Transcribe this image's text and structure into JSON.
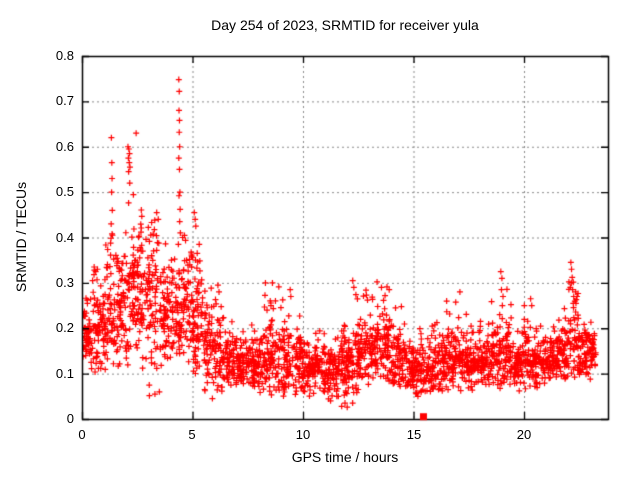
{
  "chart_data": {
    "type": "scatter",
    "title": "Day 254 of 2023, SRMTID for receiver yula",
    "xlabel": "GPS time / hours",
    "ylabel": "SRMTID / TECUs",
    "xlim": [
      0,
      23.8
    ],
    "ylim": [
      0,
      0.8
    ],
    "xticks": [
      "0",
      "5",
      "10",
      "15",
      "20"
    ],
    "yticks": [
      "0",
      "0.1",
      "0.2",
      "0.3",
      "0.4",
      "0.5",
      "0.6",
      "0.7",
      "0.8"
    ],
    "grid": true,
    "legend_position": "none",
    "marker": {
      "shape": "plus",
      "color": "#ff0000",
      "size": 7,
      "stroke": 1.2
    },
    "special_point": {
      "shape": "filled-square",
      "color": "#ff0000",
      "x": 15.45,
      "y": 0.005,
      "size": 7
    },
    "colors": {
      "grid": "#8a8a8a",
      "border": "#000000",
      "text": "#000000",
      "background": "#ffffff"
    },
    "seed": 1337,
    "points": [
      [
        1.33,
        0.62
      ],
      [
        1.35,
        0.565
      ],
      [
        1.36,
        0.53
      ],
      [
        1.34,
        0.5
      ],
      [
        1.37,
        0.46
      ],
      [
        1.32,
        0.43
      ],
      [
        1.38,
        0.405
      ],
      [
        2.08,
        0.6
      ],
      [
        2.12,
        0.595
      ],
      [
        2.15,
        0.585
      ],
      [
        2.1,
        0.575
      ],
      [
        2.14,
        0.565
      ],
      [
        2.17,
        0.555
      ],
      [
        2.11,
        0.545
      ],
      [
        2.16,
        0.52
      ],
      [
        2.45,
        0.63
      ],
      [
        0.55,
        0.335
      ],
      [
        0.62,
        0.325
      ],
      [
        0.7,
        0.33
      ],
      [
        0.48,
        0.305
      ],
      [
        4.38,
        0.748
      ],
      [
        4.4,
        0.722
      ],
      [
        4.39,
        0.68
      ],
      [
        4.41,
        0.658
      ],
      [
        4.4,
        0.632
      ],
      [
        4.42,
        0.6
      ],
      [
        4.38,
        0.575
      ],
      [
        4.41,
        0.55
      ],
      [
        4.43,
        0.5
      ],
      [
        4.39,
        0.492
      ],
      [
        4.44,
        0.462
      ],
      [
        4.42,
        0.435
      ],
      [
        4.45,
        0.41
      ],
      [
        4.55,
        0.4
      ],
      [
        4.36,
        0.385
      ],
      [
        5.08,
        0.455
      ],
      [
        5.12,
        0.44
      ],
      [
        5.15,
        0.425
      ],
      [
        3.38,
        0.455
      ],
      [
        3.45,
        0.44
      ],
      [
        6.15,
        0.295
      ],
      [
        6.2,
        0.28
      ],
      [
        8.3,
        0.3
      ],
      [
        8.55,
        0.25
      ],
      [
        9.42,
        0.285
      ],
      [
        9.45,
        0.27
      ],
      [
        12.25,
        0.305
      ],
      [
        12.3,
        0.29
      ],
      [
        12.85,
        0.284
      ],
      [
        13.35,
        0.302
      ],
      [
        13.55,
        0.29
      ],
      [
        13.8,
        0.291
      ],
      [
        13.9,
        0.285
      ],
      [
        11.75,
        0.028
      ],
      [
        11.9,
        0.035
      ],
      [
        12.0,
        0.026
      ],
      [
        11.6,
        0.05
      ],
      [
        15.2,
        0.05
      ],
      [
        5.9,
        0.045
      ],
      [
        3.3,
        0.055
      ],
      [
        3.5,
        0.06
      ],
      [
        16.5,
        0.26
      ],
      [
        17.1,
        0.28
      ],
      [
        18.95,
        0.325
      ],
      [
        19.0,
        0.31
      ],
      [
        18.98,
        0.285
      ],
      [
        19.05,
        0.27
      ],
      [
        19.02,
        0.25
      ],
      [
        18.9,
        0.23
      ],
      [
        20.3,
        0.265
      ],
      [
        20.35,
        0.25
      ],
      [
        22.12,
        0.345
      ],
      [
        22.15,
        0.33
      ],
      [
        22.18,
        0.312
      ],
      [
        22.14,
        0.3
      ],
      [
        22.2,
        0.285
      ],
      [
        22.25,
        0.27
      ],
      [
        22.3,
        0.26
      ],
      [
        22.35,
        0.255
      ],
      [
        22.4,
        0.27
      ]
    ],
    "density_bins": {
      "format": [
        "x_start",
        "x_end",
        "count",
        "y_min",
        "y_center",
        "y_max"
      ],
      "bins": [
        [
          0.0,
          0.5,
          60,
          0.08,
          0.19,
          0.27
        ],
        [
          0.5,
          1.0,
          65,
          0.1,
          0.2,
          0.33
        ],
        [
          1.0,
          1.5,
          65,
          0.1,
          0.22,
          0.46
        ],
        [
          1.5,
          2.0,
          65,
          0.11,
          0.25,
          0.42
        ],
        [
          2.0,
          2.5,
          65,
          0.13,
          0.27,
          0.52
        ],
        [
          2.5,
          3.0,
          65,
          0.11,
          0.3,
          0.48
        ],
        [
          3.0,
          3.5,
          65,
          0.05,
          0.29,
          0.46
        ],
        [
          3.5,
          4.0,
          65,
          0.1,
          0.24,
          0.42
        ],
        [
          4.0,
          4.5,
          60,
          0.12,
          0.24,
          0.4
        ],
        [
          4.5,
          5.0,
          65,
          0.12,
          0.27,
          0.44
        ],
        [
          5.0,
          5.5,
          65,
          0.1,
          0.23,
          0.44
        ],
        [
          5.5,
          6.0,
          60,
          0.05,
          0.16,
          0.32
        ],
        [
          6.0,
          6.5,
          60,
          0.06,
          0.14,
          0.28
        ],
        [
          6.5,
          7.0,
          60,
          0.07,
          0.13,
          0.25
        ],
        [
          7.0,
          7.5,
          60,
          0.06,
          0.12,
          0.21
        ],
        [
          7.5,
          8.0,
          60,
          0.07,
          0.12,
          0.22
        ],
        [
          8.0,
          8.5,
          60,
          0.06,
          0.13,
          0.28
        ],
        [
          8.5,
          9.0,
          60,
          0.07,
          0.14,
          0.3
        ],
        [
          9.0,
          9.5,
          60,
          0.06,
          0.13,
          0.27
        ],
        [
          9.5,
          10.0,
          60,
          0.06,
          0.12,
          0.24
        ],
        [
          10.0,
          10.5,
          60,
          0.05,
          0.11,
          0.19
        ],
        [
          10.5,
          11.0,
          60,
          0.06,
          0.12,
          0.21
        ],
        [
          11.0,
          11.5,
          60,
          0.03,
          0.11,
          0.18
        ],
        [
          11.5,
          12.0,
          60,
          0.04,
          0.11,
          0.21
        ],
        [
          12.0,
          12.5,
          60,
          0.06,
          0.13,
          0.29
        ],
        [
          12.5,
          13.0,
          60,
          0.08,
          0.15,
          0.28
        ],
        [
          13.0,
          13.5,
          60,
          0.1,
          0.17,
          0.31
        ],
        [
          13.5,
          14.0,
          60,
          0.09,
          0.16,
          0.3
        ],
        [
          14.0,
          14.5,
          60,
          0.07,
          0.13,
          0.25
        ],
        [
          14.5,
          15.0,
          60,
          0.06,
          0.12,
          0.22
        ],
        [
          15.0,
          15.5,
          60,
          0.05,
          0.11,
          0.21
        ],
        [
          15.5,
          16.0,
          60,
          0.06,
          0.11,
          0.21
        ],
        [
          16.0,
          16.5,
          60,
          0.07,
          0.12,
          0.23
        ],
        [
          16.5,
          17.0,
          60,
          0.07,
          0.13,
          0.26
        ],
        [
          17.0,
          17.5,
          60,
          0.07,
          0.13,
          0.25
        ],
        [
          17.5,
          18.0,
          60,
          0.06,
          0.12,
          0.21
        ],
        [
          18.0,
          18.5,
          60,
          0.07,
          0.12,
          0.22
        ],
        [
          18.5,
          19.0,
          60,
          0.08,
          0.14,
          0.27
        ],
        [
          19.0,
          19.5,
          55,
          0.08,
          0.14,
          0.29
        ],
        [
          19.5,
          20.0,
          60,
          0.07,
          0.12,
          0.21
        ],
        [
          20.0,
          20.5,
          60,
          0.07,
          0.13,
          0.25
        ],
        [
          20.5,
          21.0,
          60,
          0.07,
          0.12,
          0.21
        ],
        [
          21.0,
          21.5,
          60,
          0.08,
          0.13,
          0.22
        ],
        [
          21.5,
          22.0,
          60,
          0.09,
          0.14,
          0.25
        ],
        [
          22.0,
          22.5,
          60,
          0.1,
          0.16,
          0.31
        ],
        [
          22.5,
          23.0,
          60,
          0.08,
          0.13,
          0.23
        ],
        [
          23.0,
          23.25,
          30,
          0.1,
          0.15,
          0.22
        ]
      ]
    }
  }
}
